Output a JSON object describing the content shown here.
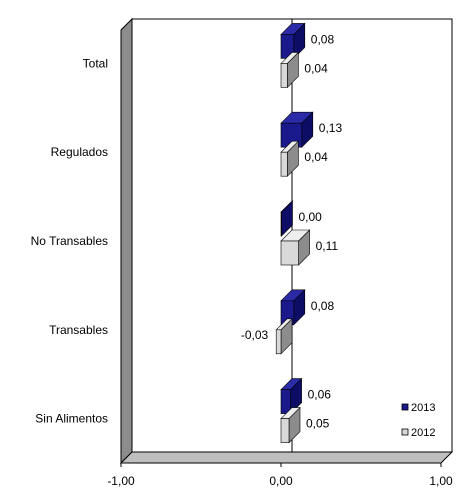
{
  "chart_data": {
    "type": "bar",
    "orientation": "horizontal",
    "style": "3d",
    "categories": [
      "Total",
      "Regulados",
      "No Transables",
      "Transables",
      "Sin Alimentos"
    ],
    "series": [
      {
        "name": "2013",
        "values": [
          0.08,
          0.13,
          0.0,
          0.08,
          0.06
        ],
        "labels": [
          "0,08",
          "0,13",
          "0,00",
          "0,08",
          "0,06"
        ],
        "color": "#1a1a8c"
      },
      {
        "name": "2012",
        "values": [
          0.04,
          0.04,
          0.11,
          -0.03,
          0.05
        ],
        "labels": [
          "0,04",
          "0,04",
          "0,11",
          "-0,03",
          "0,05"
        ],
        "color": "#d9d9d9"
      }
    ],
    "xlim": [
      -1.0,
      1.0
    ],
    "x_ticks": [
      -1.0,
      0.0,
      1.0
    ],
    "x_tick_labels": [
      "-1,00",
      "0,00",
      "1,00"
    ],
    "grid": false,
    "legend_position": "bottom-right"
  }
}
